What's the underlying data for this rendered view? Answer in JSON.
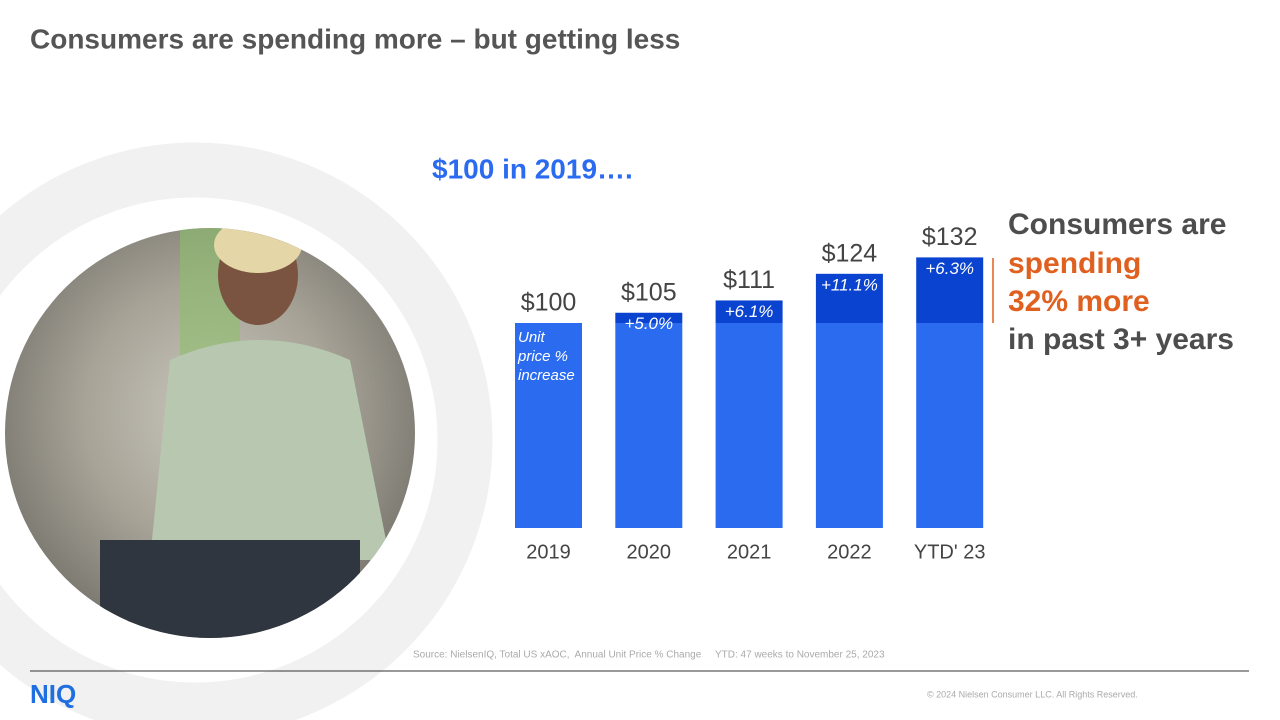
{
  "title": "Consumers are spending more – but getting less",
  "chart_data": {
    "type": "bar",
    "subtitle": "$100 in 2019….",
    "categories": [
      "2019",
      "2020",
      "2021",
      "2022",
      "YTD' 23"
    ],
    "series": [
      {
        "color": "#2b6bf0",
        "values": [
          100,
          100,
          100,
          100,
          100
        ]
      },
      {
        "color": "#0a43cf",
        "values": [
          null,
          5,
          11,
          24,
          32
        ]
      }
    ],
    "totals": {
      "values": [
        100,
        105,
        111,
        124,
        132
      ],
      "value_labels": [
        "$100",
        "$105",
        "$111",
        "$124",
        "$132"
      ]
    },
    "unit_price_change": {
      "values": [
        null,
        5.0,
        6.1,
        11.1,
        6.3
      ],
      "value_labels": [
        null,
        "+5.0%",
        "+6.1%",
        "+11.1%",
        "+6.3%"
      ]
    },
    "bar_annotation": [
      "Unit",
      "price %",
      "increase"
    ]
  },
  "callout": [
    "Consumers are",
    "spending",
    "32% more",
    "in past 3+ years"
  ],
  "source": "Source: NielsenIQ, Total US xAOC,  Annual Unit Price % Change     YTD: 47 weeks to November 25, 2023",
  "logo": "NIQ",
  "copyright": "© 2024 Nielsen Consumer LLC. All Rights Reserved."
}
